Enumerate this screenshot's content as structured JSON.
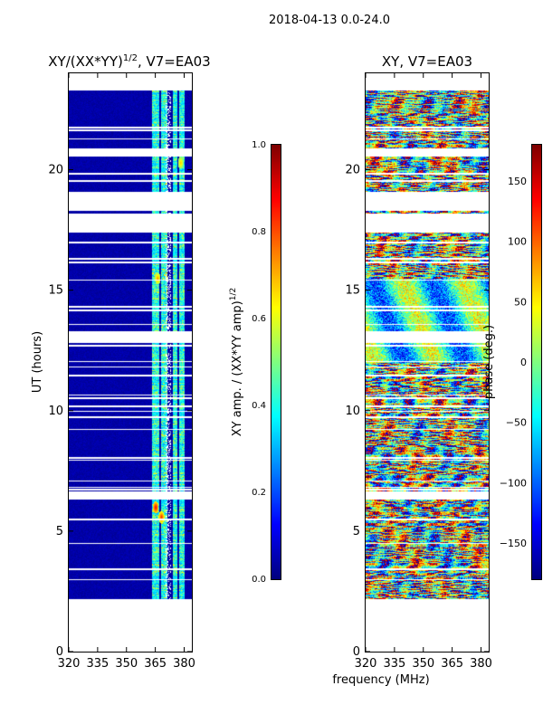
{
  "header": {
    "date_range": "2018-04-13 0.0-24.0"
  },
  "shared_xlabel": "frequency (MHz)",
  "colors": {
    "jet": [
      "#00007f",
      "#0000ff",
      "#0080ff",
      "#00ffff",
      "#80ff80",
      "#ffff00",
      "#ff8000",
      "#ff0000",
      "#7f0000"
    ]
  },
  "chart_data": [
    {
      "type": "heatmap",
      "title": "XY/(XX*YY)^1/2, V7=EA03",
      "title_main": "XY/(XX*YY)",
      "title_exp": "1/2",
      "title_tail": ", V7=EA03",
      "xlabel": "frequency (MHz)",
      "ylabel": "UT (hours)",
      "xlim": [
        320,
        384
      ],
      "ylim": [
        0,
        24
      ],
      "xticks": [
        320,
        335,
        350,
        365,
        380
      ],
      "yticks": [
        0,
        5,
        10,
        15,
        20
      ],
      "data_time_range": [
        2.2,
        23.3
      ],
      "mode": "amplitude",
      "colorbar": {
        "label": "XY amp. / (XX*YY amp)",
        "label_exp": "1/2",
        "range": [
          0.0,
          1.0
        ],
        "ticks": [
          "0.0",
          "0.2",
          "0.4",
          "0.6",
          "0.8",
          "1.0"
        ]
      },
      "bright_channels_mhz": [
        [
          363,
          367
        ],
        [
          368,
          371
        ],
        [
          374,
          376
        ],
        [
          377,
          380
        ]
      ],
      "hot_spots": [
        {
          "t": 6.0,
          "f": 365,
          "value": 0.9
        },
        {
          "t": 5.6,
          "f": 368,
          "value": 0.85
        },
        {
          "t": 15.5,
          "f": 366,
          "value": 0.75
        },
        {
          "t": 20.3,
          "f": 378,
          "value": 0.7
        }
      ]
    },
    {
      "type": "heatmap",
      "title": "XY, V7=EA03",
      "xlabel": "frequency (MHz)",
      "ylabel": "",
      "xlim": [
        320,
        384
      ],
      "ylim": [
        0,
        24
      ],
      "xticks": [
        320,
        335,
        350,
        365,
        380
      ],
      "yticks": [
        0,
        5,
        10,
        15,
        20
      ],
      "data_time_range": [
        2.2,
        23.3
      ],
      "mode": "phase",
      "colorbar": {
        "label": "phase (deg.)",
        "range": [
          -180,
          180
        ],
        "ticks": [
          "150",
          "100",
          "50",
          "0",
          "−50",
          "−100",
          "−150"
        ],
        "tick_values": [
          150,
          100,
          50,
          0,
          -50,
          -100,
          -150
        ]
      }
    }
  ],
  "gap_bands_hours": [
    [
      17.4,
      18.2
    ],
    [
      18.3,
      19.1
    ],
    [
      12.9,
      13.3
    ],
    [
      20.55,
      20.9
    ],
    [
      6.45,
      6.65
    ]
  ]
}
